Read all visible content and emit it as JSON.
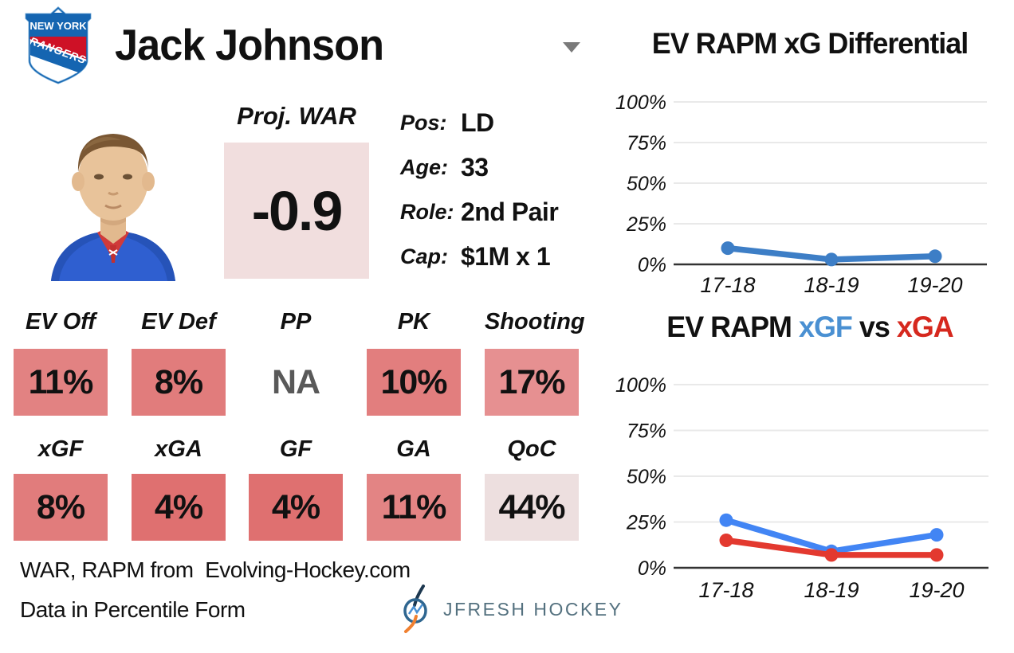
{
  "header": {
    "player_name": "Jack Johnson",
    "team_name_top": "NEW YORK",
    "team_name_banner": "RANGERS"
  },
  "war": {
    "label": "Proj. WAR",
    "value": "-0.9",
    "box_color": "#f1dede"
  },
  "info": {
    "rows": [
      {
        "label": "Pos:",
        "value": "LD"
      },
      {
        "label": "Age:",
        "value": "33"
      },
      {
        "label": "Role:",
        "value": "2nd Pair"
      },
      {
        "label": "Cap:",
        "value": "$1M x 1"
      }
    ]
  },
  "percentiles": {
    "cells": [
      {
        "label": "EV Off",
        "value": "11%",
        "color": "#e28282",
        "text_color": "#111111"
      },
      {
        "label": "EV Def",
        "value": "8%",
        "color": "#e17c7c",
        "text_color": "#111111"
      },
      {
        "label": "PP",
        "value": "NA",
        "color": null,
        "text_color": "#595959"
      },
      {
        "label": "PK",
        "value": "10%",
        "color": "#e27e7e",
        "text_color": "#111111"
      },
      {
        "label": "Shooting",
        "value": "17%",
        "color": "#e69091",
        "text_color": "#111111"
      },
      {
        "label": "xGF",
        "value": "8%",
        "color": "#e17c7c",
        "text_color": "#111111"
      },
      {
        "label": "xGA",
        "value": "4%",
        "color": "#df7070",
        "text_color": "#111111"
      },
      {
        "label": "GF",
        "value": "4%",
        "color": "#df7070",
        "text_color": "#111111"
      },
      {
        "label": "GA",
        "value": "11%",
        "color": "#e38484",
        "text_color": "#111111"
      },
      {
        "label": "QoC",
        "value": "44%",
        "color": "#eddfdf",
        "text_color": "#111111"
      }
    ]
  },
  "footer": {
    "line1": "WAR, RAPM from  Evolving-Hockey.com",
    "line2": "Data in Percentile Form",
    "brand": "JFRESH HOCKEY"
  },
  "chart_data": [
    {
      "type": "line",
      "title": "EV RAPM xG Differential",
      "x": [
        "17-18",
        "18-19",
        "19-20"
      ],
      "series": [
        {
          "name": "xG Differential",
          "color": "#3d7ec6",
          "values": [
            10,
            3,
            5
          ]
        }
      ],
      "ylim": [
        0,
        100
      ],
      "yticks": [
        "0%",
        "25%",
        "50%",
        "75%",
        "100%"
      ],
      "grid": true,
      "legend": "none"
    },
    {
      "type": "line",
      "title_parts": [
        {
          "text": "EV RAPM ",
          "color": "#111111"
        },
        {
          "text": "xGF",
          "color": "#4a90d2"
        },
        {
          "text": " vs ",
          "color": "#111111"
        },
        {
          "text": "xGA",
          "color": "#d6281e"
        }
      ],
      "x": [
        "17-18",
        "18-19",
        "19-20"
      ],
      "series": [
        {
          "name": "xGF",
          "color": "#4285f4",
          "values": [
            26,
            9,
            18
          ]
        },
        {
          "name": "xGA",
          "color": "#e3392f",
          "values": [
            15,
            7,
            7
          ]
        }
      ],
      "ylim": [
        0,
        100
      ],
      "yticks": [
        "0%",
        "25%",
        "50%",
        "75%",
        "100%"
      ],
      "grid": true,
      "legend": "in-title"
    }
  ]
}
